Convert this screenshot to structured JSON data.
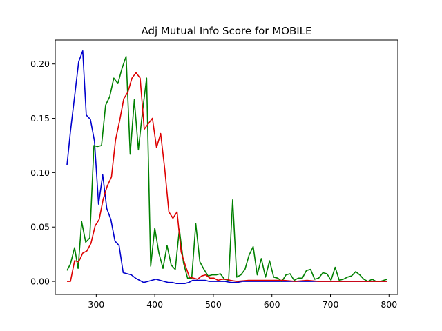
{
  "chart_data": {
    "type": "line",
    "title": "Adj Mutual Info Score for MOBILE",
    "xlabel": "",
    "ylabel": "",
    "xlim": [
      230,
      815
    ],
    "ylim": [
      -0.012,
      0.222
    ],
    "xticks": [
      300,
      400,
      500,
      600,
      700,
      800
    ],
    "yticks": [
      0.0,
      0.05,
      0.1,
      0.15,
      0.2
    ],
    "ytick_labels": [
      "0.00",
      "0.05",
      "0.10",
      "0.15",
      "0.20"
    ],
    "grid": false,
    "series": [
      {
        "color": "#0000cc",
        "points": [
          [
            250,
            0.107
          ],
          [
            256,
            0.138
          ],
          [
            263,
            0.17
          ],
          [
            270,
            0.202
          ],
          [
            277,
            0.212
          ],
          [
            283,
            0.153
          ],
          [
            290,
            0.149
          ],
          [
            297,
            0.129
          ],
          [
            304,
            0.071
          ],
          [
            311,
            0.098
          ],
          [
            318,
            0.067
          ],
          [
            325,
            0.057
          ],
          [
            332,
            0.037
          ],
          [
            339,
            0.033
          ],
          [
            346,
            0.008
          ],
          [
            353,
            0.007
          ],
          [
            360,
            0.006
          ],
          [
            367,
            0.003
          ],
          [
            374,
            0.001
          ],
          [
            381,
            -0.001
          ],
          [
            388,
            0.0
          ],
          [
            395,
            0.001
          ],
          [
            402,
            0.002
          ],
          [
            409,
            0.001
          ],
          [
            416,
            0.0
          ],
          [
            423,
            -0.001
          ],
          [
            430,
            -0.001
          ],
          [
            437,
            -0.002
          ],
          [
            444,
            -0.002
          ],
          [
            451,
            -0.002
          ],
          [
            458,
            -0.001
          ],
          [
            465,
            0.001
          ],
          [
            472,
            0.001
          ],
          [
            479,
            0.001
          ],
          [
            486,
            0.001
          ],
          [
            493,
            0.0
          ],
          [
            500,
            0.0
          ],
          [
            510,
            0.0
          ],
          [
            520,
            0.0
          ],
          [
            530,
            -0.001
          ],
          [
            540,
            -0.001
          ],
          [
            550,
            0.0
          ],
          [
            560,
            0.0
          ],
          [
            570,
            0.0
          ],
          [
            580,
            0.0
          ],
          [
            590,
            0.0
          ],
          [
            600,
            0.0
          ],
          [
            620,
            0.0
          ],
          [
            650,
            0.0
          ],
          [
            700,
            0.0
          ],
          [
            750,
            0.0
          ],
          [
            797,
            0.0
          ]
        ]
      },
      {
        "color": "#008000",
        "points": [
          [
            250,
            0.01
          ],
          [
            256,
            0.016
          ],
          [
            263,
            0.031
          ],
          [
            269,
            0.012
          ],
          [
            275,
            0.055
          ],
          [
            282,
            0.036
          ],
          [
            289,
            0.04
          ],
          [
            296,
            0.125
          ],
          [
            302,
            0.124
          ],
          [
            309,
            0.125
          ],
          [
            316,
            0.162
          ],
          [
            323,
            0.17
          ],
          [
            330,
            0.187
          ],
          [
            337,
            0.182
          ],
          [
            344,
            0.196
          ],
          [
            351,
            0.207
          ],
          [
            358,
            0.117
          ],
          [
            365,
            0.167
          ],
          [
            372,
            0.121
          ],
          [
            379,
            0.156
          ],
          [
            386,
            0.187
          ],
          [
            393,
            0.014
          ],
          [
            400,
            0.049
          ],
          [
            407,
            0.026
          ],
          [
            414,
            0.012
          ],
          [
            421,
            0.033
          ],
          [
            428,
            0.015
          ],
          [
            435,
            0.011
          ],
          [
            442,
            0.048
          ],
          [
            449,
            0.017
          ],
          [
            456,
            0.003
          ],
          [
            463,
            0.003
          ],
          [
            470,
            0.053
          ],
          [
            477,
            0.018
          ],
          [
            484,
            0.011
          ],
          [
            491,
            0.005
          ],
          [
            498,
            0.006
          ],
          [
            505,
            0.006
          ],
          [
            512,
            0.007
          ],
          [
            519,
            0.002
          ],
          [
            526,
            0.001
          ],
          [
            533,
            0.075
          ],
          [
            540,
            0.004
          ],
          [
            547,
            0.006
          ],
          [
            554,
            0.011
          ],
          [
            561,
            0.024
          ],
          [
            568,
            0.032
          ],
          [
            575,
            0.006
          ],
          [
            582,
            0.021
          ],
          [
            589,
            0.004
          ],
          [
            596,
            0.019
          ],
          [
            603,
            0.004
          ],
          [
            610,
            0.003
          ],
          [
            617,
            0.0
          ],
          [
            624,
            0.006
          ],
          [
            631,
            0.007
          ],
          [
            638,
            0.001
          ],
          [
            645,
            0.003
          ],
          [
            652,
            0.003
          ],
          [
            659,
            0.01
          ],
          [
            666,
            0.011
          ],
          [
            673,
            0.002
          ],
          [
            680,
            0.003
          ],
          [
            687,
            0.008
          ],
          [
            694,
            0.007
          ],
          [
            701,
            0.001
          ],
          [
            708,
            0.013
          ],
          [
            715,
            0.001
          ],
          [
            722,
            0.002
          ],
          [
            729,
            0.004
          ],
          [
            736,
            0.005
          ],
          [
            743,
            0.009
          ],
          [
            750,
            0.006
          ],
          [
            757,
            0.002
          ],
          [
            764,
            0.0
          ],
          [
            771,
            0.002
          ],
          [
            778,
            0.0
          ],
          [
            785,
            0.0
          ],
          [
            797,
            0.002
          ]
        ]
      },
      {
        "color": "#dd0000",
        "points": [
          [
            250,
            0.0
          ],
          [
            256,
            0.0
          ],
          [
            263,
            0.019
          ],
          [
            270,
            0.018
          ],
          [
            277,
            0.026
          ],
          [
            284,
            0.028
          ],
          [
            291,
            0.035
          ],
          [
            298,
            0.051
          ],
          [
            305,
            0.057
          ],
          [
            312,
            0.076
          ],
          [
            319,
            0.088
          ],
          [
            326,
            0.096
          ],
          [
            333,
            0.13
          ],
          [
            340,
            0.148
          ],
          [
            347,
            0.168
          ],
          [
            354,
            0.174
          ],
          [
            361,
            0.187
          ],
          [
            368,
            0.192
          ],
          [
            375,
            0.187
          ],
          [
            382,
            0.14
          ],
          [
            389,
            0.145
          ],
          [
            396,
            0.15
          ],
          [
            403,
            0.123
          ],
          [
            410,
            0.136
          ],
          [
            417,
            0.103
          ],
          [
            424,
            0.064
          ],
          [
            431,
            0.058
          ],
          [
            438,
            0.064
          ],
          [
            445,
            0.027
          ],
          [
            452,
            0.015
          ],
          [
            459,
            0.004
          ],
          [
            466,
            0.003
          ],
          [
            473,
            0.002
          ],
          [
            480,
            0.005
          ],
          [
            487,
            0.006
          ],
          [
            494,
            0.003
          ],
          [
            501,
            0.003
          ],
          [
            508,
            0.001
          ],
          [
            515,
            0.002
          ],
          [
            522,
            0.002
          ],
          [
            529,
            0.001
          ],
          [
            540,
            0.0
          ],
          [
            560,
            0.001
          ],
          [
            580,
            0.001
          ],
          [
            600,
            0.001
          ],
          [
            620,
            0.001
          ],
          [
            640,
            0.0
          ],
          [
            660,
            0.001
          ],
          [
            680,
            0.0
          ],
          [
            700,
            0.0
          ],
          [
            720,
            0.0
          ],
          [
            740,
            0.0
          ],
          [
            760,
            0.0
          ],
          [
            780,
            0.0
          ],
          [
            797,
            0.0
          ]
        ]
      }
    ]
  }
}
